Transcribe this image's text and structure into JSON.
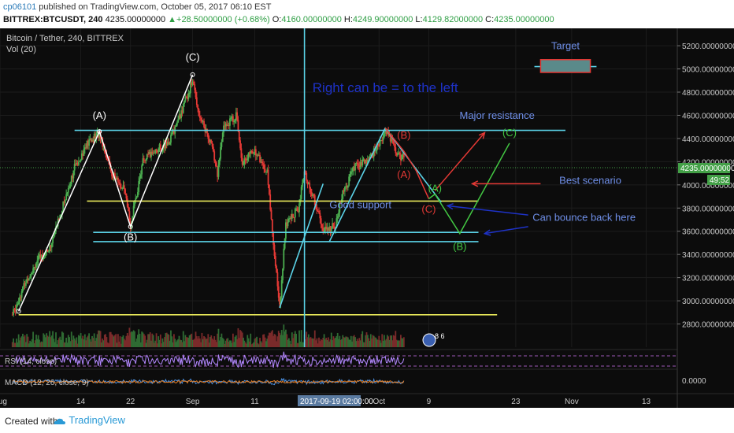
{
  "header": {
    "user": "cp06101",
    "published_text": "published on TradingView.com, October 05, 2017 06:10 EST",
    "symbol": "BITTREX:BTCUSDT, 240",
    "last": "4235.00000000",
    "change": "+28.50000000 (+0.68%)",
    "o_label": "O:",
    "o": "4160.00000000",
    "h_label": "H:",
    "h": "4249.90000000",
    "l_label": "L:",
    "l": "4129.82000000",
    "c_label": "C:",
    "c": "4235.00000000"
  },
  "pane": {
    "title": "Bitcoin / Tether, 240, BITTREX",
    "volume_label": "Vol (20)",
    "rsi_label": "RSI (14, close)",
    "macd_label": "MACD (12, 26, close, 9)",
    "price_box": "4235.00000000",
    "countdown": "49:52",
    "crosshair_date": "2017-09-19 02:00:00",
    "macd_zero": "0.0000",
    "event_count": "8 6"
  },
  "colors": {
    "background": "#0c0c0c",
    "candle_up": "#4caf50",
    "candle_down": "#e53935",
    "cyan": "#5bd3e8",
    "yellow": "#e8e85a",
    "annotation_blue": "#1e32c8",
    "label_blue": "#6f8fe8"
  },
  "chart_data": {
    "type": "candlestick",
    "title": "Bitcoin / Tether, 240, BITTREX",
    "x_start": "2017-08-01",
    "x_end": "2017-11-18",
    "ylim": [
      2600,
      5350
    ],
    "y_ticks": [
      "5200.00000000",
      "5000.00000000",
      "4800.00000000",
      "4600.00000000",
      "4400.00000000",
      "4200.00000000",
      "4000.00000000",
      "3800.00000000",
      "3600.00000000",
      "3400.00000000",
      "3200.00000000",
      "3000.00000000",
      "2800.00000000"
    ],
    "x_ticks": [
      {
        "date": "2017-08-01",
        "label": "Aug"
      },
      {
        "date": "2017-08-14",
        "label": "14"
      },
      {
        "date": "2017-08-22",
        "label": "22"
      },
      {
        "date": "2017-09-01",
        "label": "Sep"
      },
      {
        "date": "2017-09-11",
        "label": "11"
      },
      {
        "date": "2017-10-01",
        "label": "Oct"
      },
      {
        "date": "2017-10-09",
        "label": "9"
      },
      {
        "date": "2017-10-23",
        "label": "23"
      },
      {
        "date": "2017-11-01",
        "label": "Nov"
      },
      {
        "date": "2017-11-13",
        "label": "13"
      }
    ],
    "price_path": [
      [
        "2017-08-03",
        2880
      ],
      [
        "2017-08-05",
        3150
      ],
      [
        "2017-08-07",
        3350
      ],
      [
        "2017-08-09",
        3450
      ],
      [
        "2017-08-11",
        3800
      ],
      [
        "2017-08-13",
        4150
      ],
      [
        "2017-08-15",
        4350
      ],
      [
        "2017-08-17",
        4450
      ],
      [
        "2017-08-19",
        4100
      ],
      [
        "2017-08-21",
        3950
      ],
      [
        "2017-08-22",
        3650
      ],
      [
        "2017-08-24",
        4200
      ],
      [
        "2017-08-26",
        4300
      ],
      [
        "2017-08-28",
        4350
      ],
      [
        "2017-08-30",
        4600
      ],
      [
        "2017-09-01",
        4900
      ],
      [
        "2017-09-02",
        4620
      ],
      [
        "2017-09-04",
        4350
      ],
      [
        "2017-09-05",
        4100
      ],
      [
        "2017-09-06",
        4500
      ],
      [
        "2017-09-08",
        4600
      ],
      [
        "2017-09-09",
        4200
      ],
      [
        "2017-09-11",
        4300
      ],
      [
        "2017-09-13",
        4100
      ],
      [
        "2017-09-14",
        3500
      ],
      [
        "2017-09-15",
        2950
      ],
      [
        "2017-09-16",
        3650
      ],
      [
        "2017-09-18",
        3800
      ],
      [
        "2017-09-19",
        4100
      ],
      [
        "2017-09-20",
        3950
      ],
      [
        "2017-09-21",
        3800
      ],
      [
        "2017-09-22",
        3600
      ],
      [
        "2017-09-24",
        3650
      ],
      [
        "2017-09-25",
        3900
      ],
      [
        "2017-09-27",
        4150
      ],
      [
        "2017-09-29",
        4200
      ],
      [
        "2017-10-01",
        4350
      ],
      [
        "2017-10-02",
        4480
      ],
      [
        "2017-10-03",
        4380
      ],
      [
        "2017-10-04",
        4250
      ],
      [
        "2017-10-05",
        4235
      ]
    ],
    "lines": [
      {
        "name": "cyan-upper",
        "color": "cyan",
        "from": [
          "2017-08-13",
          4470
        ],
        "to": [
          "2017-10-31",
          4470
        ]
      },
      {
        "name": "yellow-support",
        "color": "yellow",
        "from": [
          "2017-08-15",
          3860
        ],
        "to": [
          "2017-10-17",
          3860
        ]
      },
      {
        "name": "cyan-lower-1",
        "color": "cyan",
        "from": [
          "2017-08-16",
          3590
        ],
        "to": [
          "2017-10-17",
          3590
        ]
      },
      {
        "name": "cyan-lower-2",
        "color": "cyan",
        "from": [
          "2017-08-16",
          3510
        ],
        "to": [
          "2017-10-17",
          3510
        ]
      },
      {
        "name": "yellow-bottom",
        "color": "yellow",
        "from": [
          "2017-08-04",
          2880
        ],
        "to": [
          "2017-10-20",
          2880
        ]
      },
      {
        "name": "cyan-vertical",
        "color": "cyan",
        "from": [
          "2017-09-19",
          5350
        ],
        "to": [
          "2017-09-19",
          2600
        ]
      },
      {
        "name": "cyan-rise-1",
        "color": "cyan",
        "from": [
          "2017-09-15",
          2940
        ],
        "to": [
          "2017-09-22",
          4010
        ]
      },
      {
        "name": "cyan-rise-2",
        "color": "cyan",
        "from": [
          "2017-09-23",
          3510
        ],
        "to": [
          "2017-10-02",
          4490
        ]
      },
      {
        "name": "cyan-fall",
        "color": "cyan",
        "from": [
          "2017-10-02",
          4490
        ],
        "to": [
          "2017-10-11",
          3850
        ]
      },
      {
        "name": "target-line",
        "color": "cyan",
        "from": [
          "2017-10-26",
          5020
        ],
        "to": [
          "2017-11-05",
          5020
        ]
      }
    ],
    "wave_white": [
      [
        "2017-08-04",
        2910
      ],
      [
        "2017-08-17",
        4460
      ],
      [
        "2017-08-22",
        3640
      ],
      [
        "2017-09-01",
        4950
      ]
    ],
    "wave_red": [
      [
        "2017-10-02",
        4490
      ],
      [
        "2017-10-05",
        4290
      ],
      [
        "2017-10-07",
        4120
      ],
      [
        "2017-10-09",
        3880
      ]
    ],
    "wave_green": [
      [
        "2017-10-09",
        3880
      ],
      [
        "2017-10-10",
        3920
      ],
      [
        "2017-10-14",
        3580
      ],
      [
        "2017-10-22",
        4360
      ]
    ],
    "arrows": [
      {
        "name": "arrow-red-up",
        "color": "#e53935",
        "from": [
          "2017-10-10",
          3950
        ],
        "to": [
          "2017-10-18",
          4450
        ]
      },
      {
        "name": "arrow-red-left",
        "color": "#e53935",
        "from": [
          "2017-10-27",
          4010
        ],
        "to": [
          "2017-10-16",
          4010
        ]
      },
      {
        "name": "arrow-blue-1",
        "color": "#1e32c8",
        "from": [
          "2017-10-25",
          3740
        ],
        "to": [
          "2017-10-12",
          3820
        ]
      },
      {
        "name": "arrow-blue-2",
        "color": "#1e32c8",
        "from": [
          "2017-10-25",
          3640
        ],
        "to": [
          "2017-10-18",
          3580
        ]
      }
    ],
    "target_box": {
      "date_from": "2017-10-27",
      "date_to": "2017-11-04",
      "price_from": 4970,
      "price_to": 5080
    },
    "annotations": [
      {
        "text": "(A)",
        "date": "2017-08-17",
        "price": 4570,
        "color": "#ffffff"
      },
      {
        "text": "(B)",
        "date": "2017-08-22",
        "price": 3520,
        "color": "#ffffff"
      },
      {
        "text": "(C)",
        "date": "2017-09-01",
        "price": 5070,
        "color": "#ffffff"
      },
      {
        "text": "(B)",
        "date": "2017-10-05",
        "price": 4400,
        "color": "#e53935"
      },
      {
        "text": "(A)",
        "date": "2017-10-05",
        "price": 4060,
        "color": "#e53935"
      },
      {
        "text": "(C)",
        "date": "2017-10-09",
        "price": 3760,
        "color": "#e53935"
      },
      {
        "text": "(A)",
        "date": "2017-10-10",
        "price": 3940,
        "color": "#43c843"
      },
      {
        "text": "(B)",
        "date": "2017-10-14",
        "price": 3440,
        "color": "#43c843"
      },
      {
        "text": "(C)",
        "date": "2017-10-22",
        "price": 4420,
        "color": "#43c843"
      },
      {
        "text": "Target",
        "date": "2017-10-31",
        "price": 5170,
        "color": "#6f8fe8"
      },
      {
        "text": "Right can be = to the left",
        "date": "2017-10-02",
        "price": 4800,
        "color": "#1e32c8"
      },
      {
        "text": "Major resistance",
        "date": "2017-10-20",
        "price": 4570,
        "color": "#6f8fe8"
      },
      {
        "text": "Best scenario",
        "date": "2017-11-04",
        "price": 4010,
        "color": "#6f8fe8"
      },
      {
        "text": "Good support",
        "date": "2017-09-28",
        "price": 3800,
        "color": "#6f8fe8"
      },
      {
        "text": "Can bounce back here",
        "date": "2017-11-03",
        "price": 3690,
        "color": "#6f8fe8"
      }
    ]
  },
  "footer": {
    "created": "Created with",
    "brand": "TradingView"
  }
}
